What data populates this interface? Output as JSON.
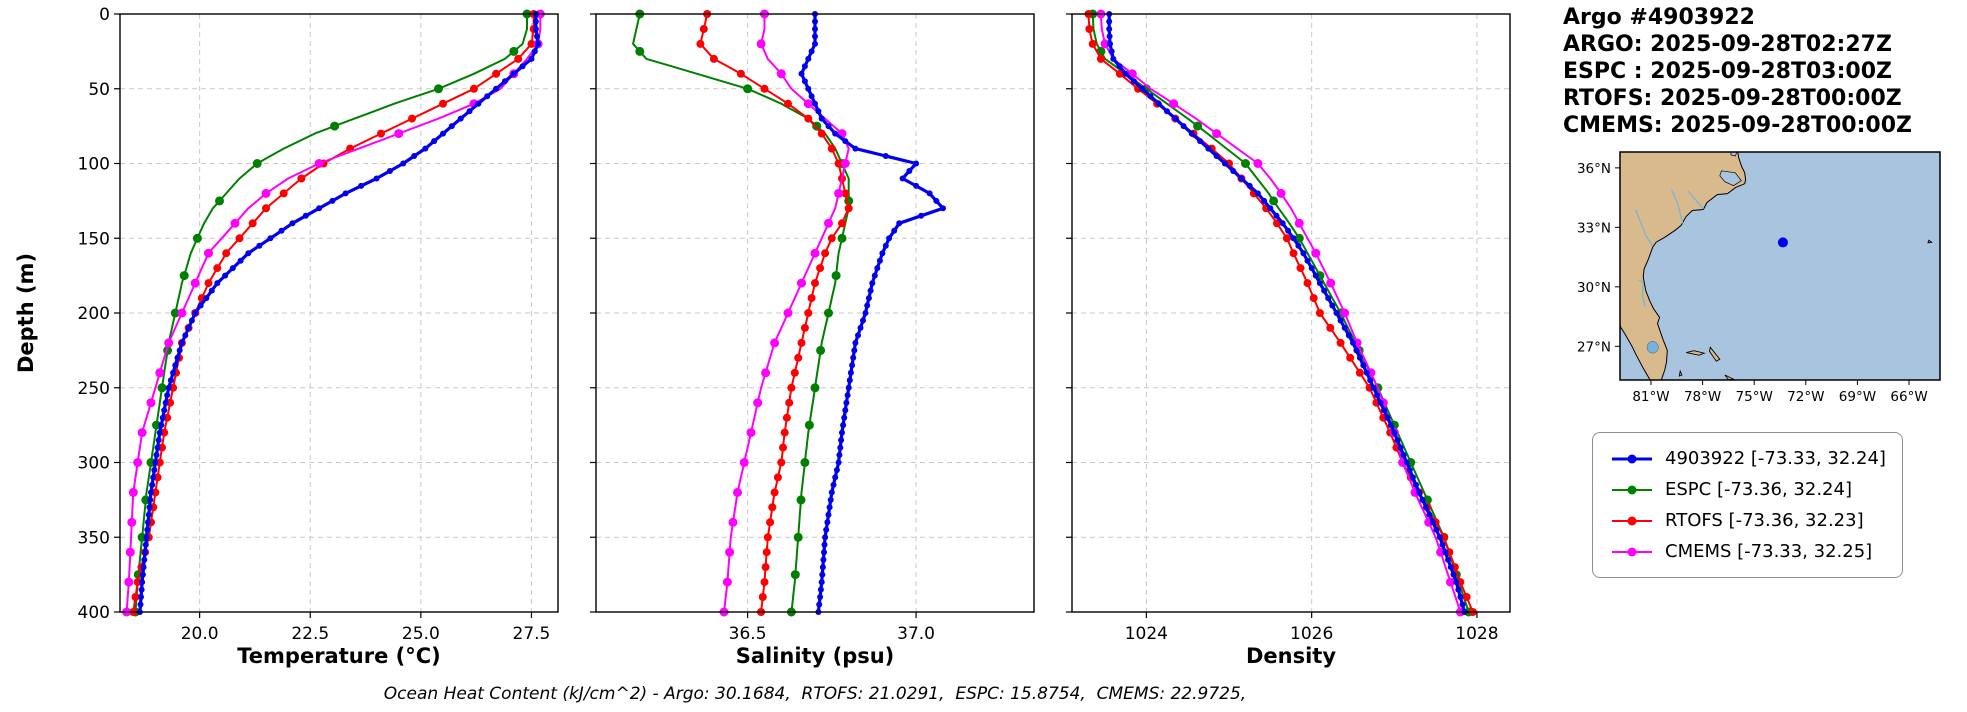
{
  "header": {
    "title": "Argo #4903922",
    "lines": [
      "ARGO: 2025-09-28T02:27Z",
      "ESPC : 2025-09-28T03:00Z",
      "RTOFS: 2025-09-28T00:00Z",
      "CMEMS: 2025-09-28T00:00Z"
    ]
  },
  "axis_labels": {
    "depth": "Depth (m)",
    "temperature": "Temperature (°C)",
    "salinity": "Salinity (psu)",
    "density": "Density"
  },
  "caption": "Ocean Heat Content (kJ/cm^2) - Argo: 30.1684,  RTOFS: 21.0291,  ESPC: 15.8754,  CMEMS: 22.9725,",
  "legend": {
    "items": [
      {
        "label": "4903922 [-73.33, 32.24]"
      },
      {
        "label": "ESPC [-73.36, 32.24]"
      },
      {
        "label": "RTOFS [-73.36, 32.23]"
      },
      {
        "label": "CMEMS [-73.33, 32.25]"
      }
    ]
  },
  "map": {
    "extent": {
      "lon_min": -82.8,
      "lon_max": -64.2,
      "lat_min": 25.3,
      "lat_max": 36.8
    },
    "lon_ticks": [
      {
        "value": -81,
        "label": "81°W"
      },
      {
        "value": -78,
        "label": "78°W"
      },
      {
        "value": -75,
        "label": "75°W"
      },
      {
        "value": -72,
        "label": "72°W"
      },
      {
        "value": -69,
        "label": "69°W"
      },
      {
        "value": -66,
        "label": "66°W"
      }
    ],
    "lat_ticks": [
      {
        "value": 36,
        "label": "36°N"
      },
      {
        "value": 33,
        "label": "33°N"
      },
      {
        "value": 30,
        "label": "30°N"
      },
      {
        "value": 27,
        "label": "27°N"
      }
    ],
    "ocean_color": "#a9c4de",
    "land_color": "#d9ba8c",
    "river_color": "#74b2e2",
    "float_marker": {
      "lon": -73.33,
      "lat": 32.24,
      "color": "#0000ee",
      "radius": 5
    }
  },
  "chart_data": {
    "type": "line",
    "orientation": "vertical-profile",
    "grid": {
      "on": true,
      "style": "dashed"
    },
    "depth_axis": {
      "label": "Depth (m)",
      "min": 0,
      "max": 400,
      "ticks": [
        0,
        50,
        100,
        150,
        200,
        250,
        300,
        350,
        400
      ],
      "tick_labels": [
        "0",
        "50",
        "100",
        "150",
        "200",
        "250",
        "300",
        "350",
        "400"
      ]
    },
    "panels": [
      {
        "key": "temp",
        "xlabel": "Temperature (°C)",
        "xlim": [
          18.2,
          28.1
        ],
        "ticks": [
          20.0,
          22.5,
          25.0,
          27.5
        ],
        "tick_labels": [
          "20.0",
          "22.5",
          "25.0",
          "27.5"
        ]
      },
      {
        "key": "sal",
        "xlabel": "Salinity (psu)",
        "xlim": [
          36.05,
          37.35
        ],
        "ticks": [
          36.5,
          37.0
        ],
        "tick_labels": [
          "36.5",
          "37.0"
        ]
      },
      {
        "key": "dens",
        "xlabel": "Density",
        "xlim": [
          1023.1,
          1028.4
        ],
        "ticks": [
          1024,
          1026,
          1028
        ],
        "tick_labels": [
          "1024",
          "1026",
          "1028"
        ]
      }
    ],
    "depths": [
      0,
      10,
      20,
      30,
      40,
      50,
      60,
      70,
      80,
      90,
      100,
      110,
      120,
      130,
      140,
      150,
      160,
      180,
      200,
      220,
      250,
      280,
      300,
      320,
      350,
      380,
      400
    ],
    "draw_order": [
      1,
      2,
      3,
      0
    ],
    "series": [
      {
        "name": "4903922",
        "color": "#0000ee",
        "line_width": 3.2,
        "marker_step": 5,
        "marker_radius": 3,
        "temp": [
          27.6,
          27.6,
          27.65,
          27.5,
          27.1,
          26.7,
          26.3,
          25.9,
          25.5,
          25.1,
          24.6,
          24.0,
          23.3,
          22.7,
          22.1,
          21.6,
          21.1,
          20.4,
          19.9,
          19.6,
          19.3,
          19.1,
          19.0,
          18.9,
          18.8,
          18.7,
          18.65
        ],
        "sal": [
          36.7,
          36.7,
          36.7,
          36.68,
          36.66,
          36.68,
          36.7,
          36.72,
          36.76,
          36.82,
          37.0,
          36.96,
          37.04,
          37.08,
          36.95,
          36.92,
          36.9,
          36.87,
          36.85,
          36.82,
          36.8,
          36.78,
          36.77,
          36.75,
          36.73,
          36.72,
          36.71
        ],
        "dens": [
          1023.55,
          1023.55,
          1023.56,
          1023.6,
          1023.75,
          1023.95,
          1024.15,
          1024.35,
          1024.55,
          1024.75,
          1024.95,
          1025.15,
          1025.35,
          1025.5,
          1025.65,
          1025.78,
          1025.9,
          1026.1,
          1026.3,
          1026.5,
          1026.75,
          1027.0,
          1027.15,
          1027.3,
          1027.55,
          1027.75,
          1027.85
        ]
      },
      {
        "name": "ESPC",
        "color": "#008000",
        "line_width": 2,
        "marker_step": 25,
        "marker_radius": 4.5,
        "temp": [
          27.4,
          27.4,
          27.3,
          26.9,
          26.2,
          25.4,
          24.4,
          23.5,
          22.6,
          21.9,
          21.3,
          20.9,
          20.6,
          20.3,
          20.1,
          19.95,
          19.8,
          19.6,
          19.45,
          19.3,
          19.15,
          19.0,
          18.9,
          18.8,
          18.7,
          18.6,
          18.55
        ],
        "sal": [
          36.18,
          36.17,
          36.16,
          36.2,
          36.35,
          36.5,
          36.6,
          36.68,
          36.73,
          36.76,
          36.78,
          36.8,
          36.8,
          36.8,
          36.79,
          36.78,
          36.77,
          36.76,
          36.74,
          36.72,
          36.7,
          36.68,
          36.67,
          36.66,
          36.65,
          36.64,
          36.63
        ],
        "dens": [
          1023.35,
          1023.36,
          1023.4,
          1023.5,
          1023.75,
          1024.0,
          1024.25,
          1024.5,
          1024.74,
          1024.97,
          1025.2,
          1025.34,
          1025.48,
          1025.6,
          1025.73,
          1025.85,
          1025.95,
          1026.15,
          1026.35,
          1026.53,
          1026.8,
          1027.04,
          1027.2,
          1027.36,
          1027.6,
          1027.78,
          1027.9
        ]
      },
      {
        "name": "RTOFS",
        "color": "#ff0000",
        "line_width": 2,
        "marker_step": 10,
        "marker_radius": 4,
        "temp": [
          27.55,
          27.55,
          27.5,
          27.2,
          26.7,
          26.2,
          25.5,
          24.8,
          24.1,
          23.4,
          22.8,
          22.3,
          21.9,
          21.5,
          21.2,
          20.9,
          20.6,
          20.2,
          19.9,
          19.6,
          19.4,
          19.2,
          19.1,
          19.0,
          18.85,
          18.6,
          18.5
        ],
        "sal": [
          36.38,
          36.37,
          36.36,
          36.4,
          36.48,
          36.55,
          36.62,
          36.68,
          36.72,
          36.75,
          36.77,
          36.78,
          36.79,
          36.8,
          36.78,
          36.75,
          36.73,
          36.7,
          36.68,
          36.66,
          36.63,
          36.61,
          36.6,
          36.58,
          36.56,
          36.55,
          36.54
        ],
        "dens": [
          1023.3,
          1023.31,
          1023.35,
          1023.45,
          1023.68,
          1023.9,
          1024.13,
          1024.35,
          1024.57,
          1024.79,
          1025.0,
          1025.15,
          1025.3,
          1025.45,
          1025.58,
          1025.7,
          1025.78,
          1025.95,
          1026.1,
          1026.35,
          1026.7,
          1026.95,
          1027.1,
          1027.3,
          1027.6,
          1027.8,
          1027.95
        ]
      },
      {
        "name": "CMEMS",
        "color": "#ff00ff",
        "line_width": 2,
        "marker_step": 20,
        "marker_radius": 4.5,
        "temp": [
          27.7,
          27.7,
          27.65,
          27.4,
          27.1,
          26.8,
          26.2,
          25.4,
          24.5,
          23.6,
          22.7,
          22.0,
          21.5,
          21.1,
          20.8,
          20.5,
          20.2,
          19.9,
          19.6,
          19.3,
          19.0,
          18.7,
          18.6,
          18.5,
          18.45,
          18.4,
          18.35
        ],
        "sal": [
          36.55,
          36.55,
          36.54,
          36.56,
          36.6,
          36.63,
          36.68,
          36.73,
          36.78,
          36.8,
          36.79,
          36.78,
          36.77,
          36.76,
          36.74,
          36.72,
          36.7,
          36.66,
          36.62,
          36.58,
          36.54,
          36.51,
          36.49,
          36.47,
          36.45,
          36.44,
          36.43
        ],
        "dens": [
          1023.45,
          1023.46,
          1023.5,
          1023.6,
          1023.83,
          1024.05,
          1024.33,
          1024.6,
          1024.85,
          1025.1,
          1025.35,
          1025.5,
          1025.63,
          1025.75,
          1025.85,
          1025.95,
          1026.05,
          1026.23,
          1026.4,
          1026.55,
          1026.8,
          1027.0,
          1027.1,
          1027.25,
          1027.5,
          1027.68,
          1027.8
        ]
      }
    ]
  }
}
